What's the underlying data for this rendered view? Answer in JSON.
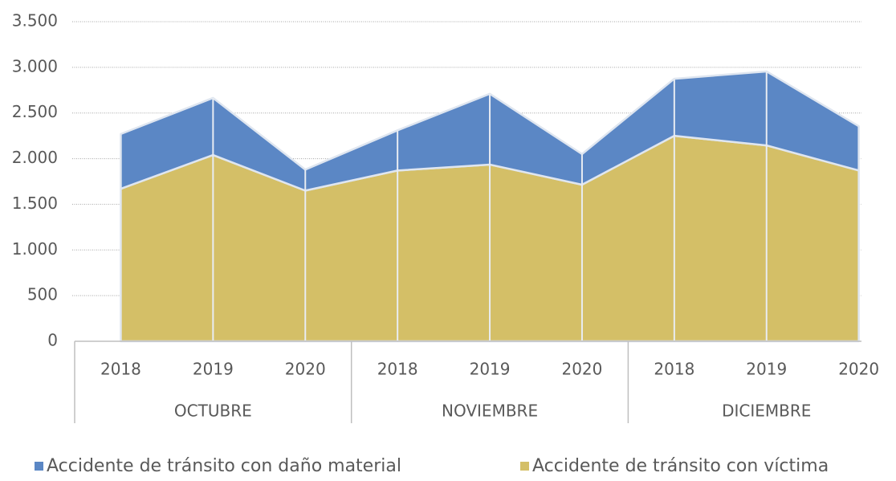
{
  "chart_data": {
    "type": "stacked_area",
    "categories": [
      "2018",
      "2019",
      "2020",
      "2018",
      "2019",
      "2020",
      "2018",
      "2019",
      "2020"
    ],
    "groups": [
      "OCTUBRE",
      "NOVIEMBRE",
      "DICIEMBRE"
    ],
    "series": [
      {
        "name": "Accidente de tránsito con daño material",
        "color": "#5b87c5",
        "values": [
          600,
          625,
          230,
          440,
          775,
          335,
          625,
          810,
          485
        ]
      },
      {
        "name": "Accidente de tránsito  con víctima",
        "color": "#d4bf67",
        "values": [
          1670,
          2040,
          1650,
          1870,
          1935,
          1715,
          2250,
          2145,
          1870
        ]
      }
    ],
    "ylim": [
      0,
      3500
    ],
    "yticks": [
      0,
      500,
      {
        "value": 1000,
        "label": "1.000"
      },
      {
        "value": 1500,
        "label": "1.500"
      },
      {
        "value": 2000,
        "label": "2.000"
      },
      {
        "value": 2500,
        "label": "2.500"
      },
      {
        "value": 3000,
        "label": "3.000"
      },
      {
        "value": 3500,
        "label": "3.500"
      }
    ],
    "grid": true
  }
}
